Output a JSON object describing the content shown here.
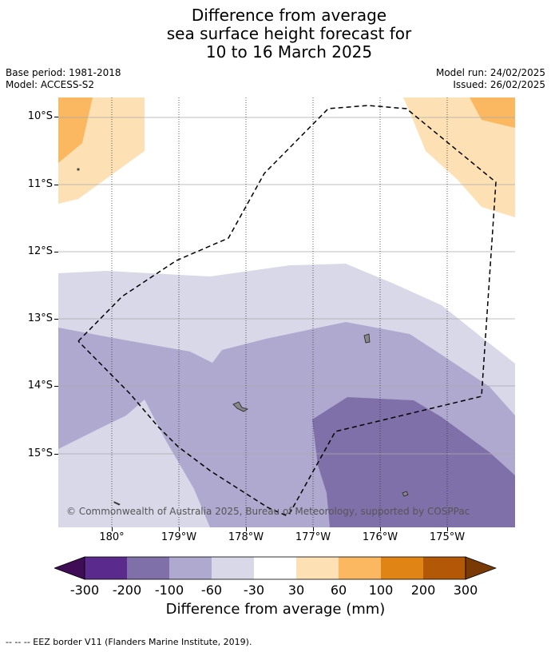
{
  "title": {
    "line1": "Difference from average",
    "line2": "sea surface height forecast for",
    "line3": "10 to 16 March 2025"
  },
  "meta": {
    "base_period": "Base period: 1981-2018",
    "model": "Model: ACCESS-S2",
    "model_run": "Model run: 24/02/2025",
    "issued": "Issued: 26/02/2025"
  },
  "map": {
    "lat_labels": [
      "10°S",
      "11°S",
      "12°S",
      "13°S",
      "14°S",
      "15°S"
    ],
    "lon_labels": [
      "180°",
      "179°W",
      "178°W",
      "177°W",
      "176°W",
      "175°W"
    ],
    "copyright": "© Commonwealth of Australia 2025, Bureau of Meteorology, supported by COSPPac"
  },
  "colorbar": {
    "labels": [
      "-300",
      "-200",
      "-100",
      "-60",
      "-30",
      "30",
      "60",
      "100",
      "200",
      "300"
    ],
    "colors": [
      "#3f0d55",
      "#5a2a8c",
      "#8070aa",
      "#afa9cf",
      "#d8d8e8",
      "#ffffff",
      "#fde1b5",
      "#fbb861",
      "#e08515",
      "#b25807",
      "#7a3a06"
    ],
    "title": "Difference from average (mm)"
  },
  "footer": "--  --  -- EEZ border V11 (Flanders Marine Institute, 2019)."
}
